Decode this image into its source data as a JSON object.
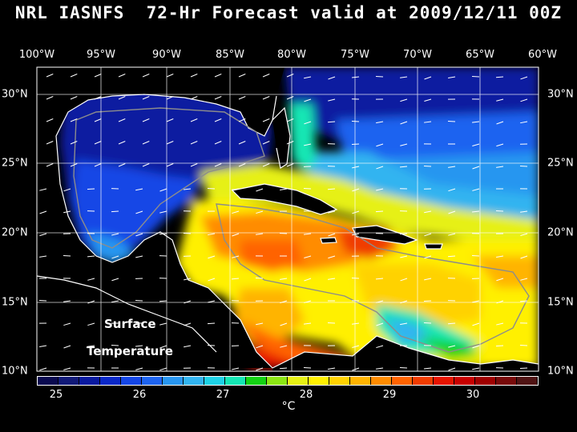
{
  "title": "NRL IASNFS  72-Hr Forecast valid at 2009/12/11 00Z",
  "lon_labels": [
    "100°W",
    "95°W",
    "90°W",
    "85°W",
    "80°W",
    "75°W",
    "70°W",
    "65°W",
    "60°W"
  ],
  "lat_labels": [
    "30°N",
    "25°N",
    "20°N",
    "15°N",
    "10°N"
  ],
  "overlay": {
    "line1": "Surface",
    "line2": "Temperature"
  },
  "colorbar": {
    "colors": [
      "#0a0a50",
      "#121a78",
      "#0a1aa0",
      "#0a28c8",
      "#1446e6",
      "#1e64f0",
      "#2896f0",
      "#32b4f0",
      "#1ed2e6",
      "#14e6b4",
      "#14d214",
      "#8ce614",
      "#e6f014",
      "#fff000",
      "#ffd200",
      "#ffb400",
      "#ff8c00",
      "#ff6400",
      "#f03c00",
      "#e61400",
      "#c80000",
      "#a00000",
      "#780a0a",
      "#501414"
    ],
    "tick_labels": [
      "25",
      "26",
      "27",
      "28",
      "29",
      "30"
    ],
    "unit": "°C"
  }
}
